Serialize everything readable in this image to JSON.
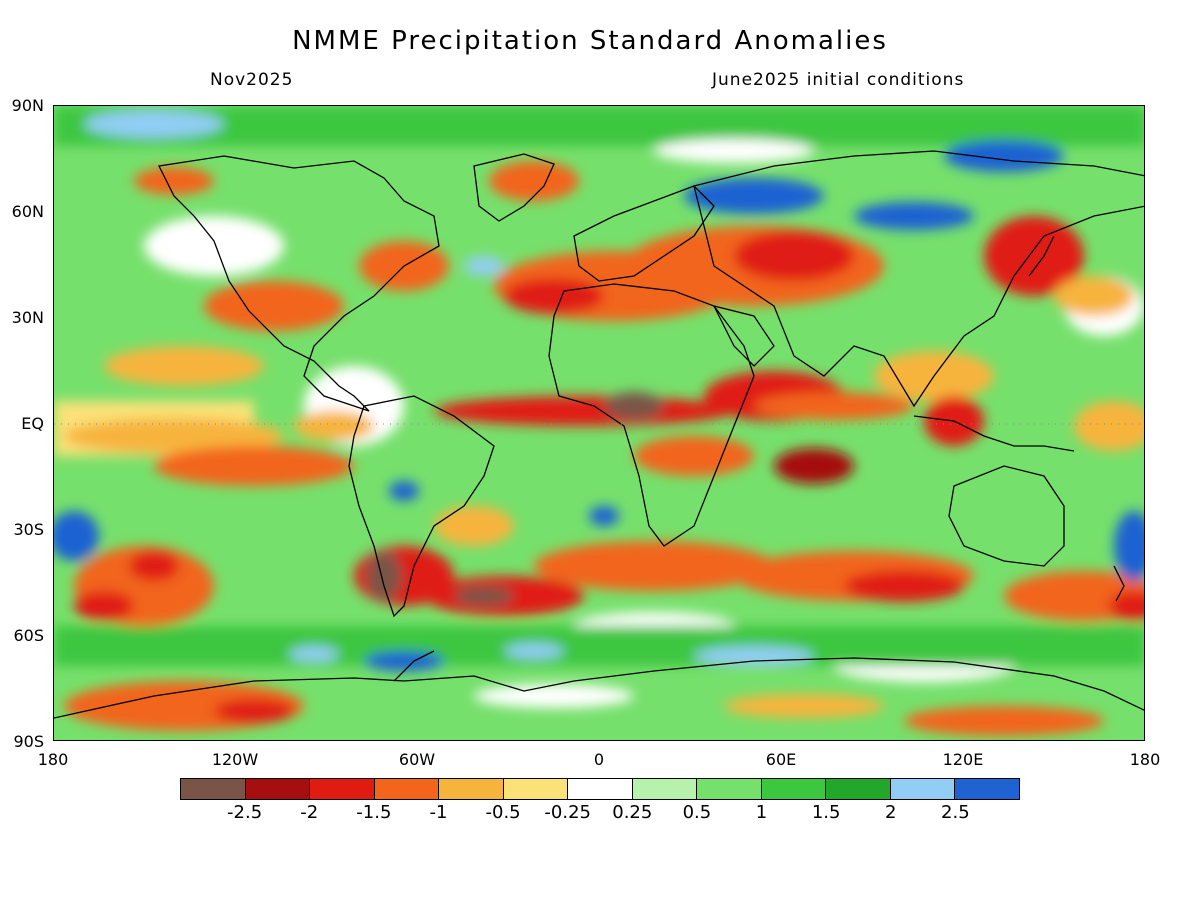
{
  "title": "NMME Precipitation Standard Anomalies",
  "valid_month": "Nov2025",
  "initial_conditions": "June2025 initial conditions",
  "lat_labels": [
    "90N",
    "60N",
    "30N",
    "EQ",
    "30S",
    "60S",
    "90S"
  ],
  "lon_labels": [
    "180",
    "120W",
    "60W",
    "0",
    "60E",
    "120E",
    "180"
  ],
  "colorbar": {
    "labels": [
      "-2.5",
      "-2",
      "-1.5",
      "-1",
      "-0.5",
      "-0.25",
      "0.25",
      "0.5",
      "1",
      "1.5",
      "2",
      "2.5"
    ],
    "colors": [
      "#7a5446",
      "#a50f0f",
      "#e01b12",
      "#f2651a",
      "#f7b43c",
      "#fbe278",
      "#ffffff",
      "#b6f2ac",
      "#76e06c",
      "#3dc63f",
      "#23a72a",
      "#92cdf5",
      "#1f62d2"
    ]
  }
}
